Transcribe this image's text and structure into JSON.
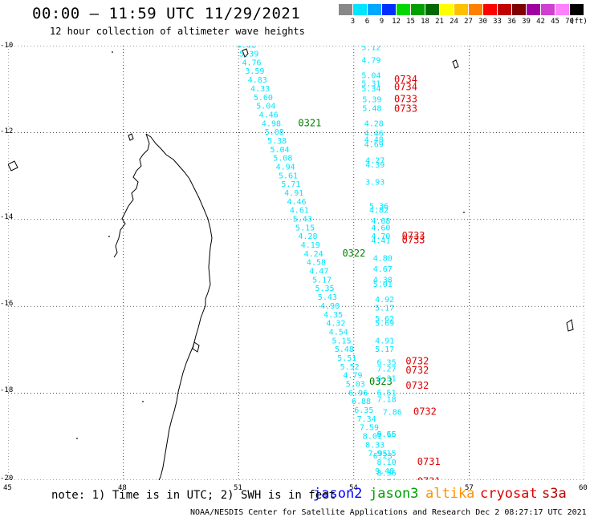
{
  "header": {
    "title": "00:00 – 11:59 UTC 11/29/2021",
    "subtitle": "12 hour collection of altimeter wave heights"
  },
  "legend": {
    "unit": "(ft)",
    "bins": [
      {
        "label": "3",
        "color": "#888888"
      },
      {
        "label": "6",
        "color": "#00e5ff"
      },
      {
        "label": "9",
        "color": "#00a8ff"
      },
      {
        "label": "12",
        "color": "#0030ff"
      },
      {
        "label": "15",
        "color": "#00d800"
      },
      {
        "label": "18",
        "color": "#00a000"
      },
      {
        "label": "21",
        "color": "#006a00"
      },
      {
        "label": "24",
        "color": "#ffff00"
      },
      {
        "label": "27",
        "color": "#ffc000"
      },
      {
        "label": "30",
        "color": "#ff8000"
      },
      {
        "label": "33",
        "color": "#ff0000"
      },
      {
        "label": "36",
        "color": "#c00000"
      },
      {
        "label": "39",
        "color": "#800000"
      },
      {
        "label": "42",
        "color": "#a000a0"
      },
      {
        "label": "45",
        "color": "#d040d0"
      },
      {
        "label": "70",
        "color": "#ff80ff"
      },
      {
        "label": "",
        "color": "#000000"
      }
    ]
  },
  "map": {
    "lon_range": [
      45,
      60
    ],
    "lat_range": [
      -20,
      -10
    ],
    "lon_ticks": [
      "45",
      "48",
      "51",
      "54",
      "57",
      "60"
    ],
    "lat_ticks": [
      "-10",
      "-12",
      "-14",
      "-16",
      "-18",
      "-20"
    ],
    "swh_color": "#00e5ff",
    "tracks": [
      {
        "satellite": "jason3",
        "time_color": "#008000",
        "points": [
          {
            "lat": -10.05,
            "lon": 50.95,
            "swh": "3.61"
          },
          {
            "lat": -10.25,
            "lon": 51.02,
            "swh": "5.39"
          },
          {
            "lat": -10.45,
            "lon": 51.09,
            "swh": "4.76"
          },
          {
            "lat": -10.65,
            "lon": 51.17,
            "swh": "3.59"
          },
          {
            "lat": -10.85,
            "lon": 51.24,
            "swh": "4.83"
          },
          {
            "lat": -11.05,
            "lon": 51.31,
            "swh": "4.33"
          },
          {
            "lat": -11.25,
            "lon": 51.39,
            "swh": "5.60"
          },
          {
            "lat": -11.45,
            "lon": 51.46,
            "swh": "5.04"
          },
          {
            "lat": -11.65,
            "lon": 51.53,
            "swh": "4.46"
          },
          {
            "lat": -11.85,
            "lon": 51.6,
            "swh": "4.98"
          },
          {
            "lat": -12.05,
            "lon": 51.68,
            "swh": "5.08"
          },
          {
            "lat": -12.25,
            "lon": 51.75,
            "swh": "5.38"
          },
          {
            "lat": -12.45,
            "lon": 51.82,
            "swh": "5.04"
          },
          {
            "lat": -12.65,
            "lon": 51.9,
            "swh": "5.08"
          },
          {
            "lat": -12.85,
            "lon": 51.97,
            "swh": "4.94"
          },
          {
            "lat": -13.05,
            "lon": 52.04,
            "swh": "5.61"
          },
          {
            "lat": -13.25,
            "lon": 52.11,
            "swh": "5.71"
          },
          {
            "lat": -13.45,
            "lon": 52.19,
            "swh": "4.91"
          },
          {
            "lat": -13.65,
            "lon": 52.26,
            "swh": "4.46"
          },
          {
            "lat": -13.85,
            "lon": 52.33,
            "swh": "4.61"
          },
          {
            "lat": -14.05,
            "lon": 52.41,
            "swh": "5.43"
          },
          {
            "lat": -14.25,
            "lon": 52.48,
            "swh": "5.15"
          },
          {
            "lat": -14.45,
            "lon": 52.55,
            "swh": "4.28"
          },
          {
            "lat": -14.65,
            "lon": 52.62,
            "swh": "4.19"
          },
          {
            "lat": -14.85,
            "lon": 52.7,
            "swh": "4.24"
          },
          {
            "lat": -15.05,
            "lon": 52.77,
            "swh": "4.58"
          },
          {
            "lat": -15.25,
            "lon": 52.84,
            "swh": "4.47"
          },
          {
            "lat": -15.45,
            "lon": 52.92,
            "swh": "5.17"
          },
          {
            "lat": -15.65,
            "lon": 52.99,
            "swh": "5.35"
          },
          {
            "lat": -15.85,
            "lon": 53.06,
            "swh": "5.43"
          },
          {
            "lat": -16.05,
            "lon": 53.13,
            "swh": "4.90"
          },
          {
            "lat": -16.25,
            "lon": 53.21,
            "swh": "4.35"
          },
          {
            "lat": -16.45,
            "lon": 53.28,
            "swh": "4.32"
          },
          {
            "lat": -16.65,
            "lon": 53.35,
            "swh": "4.54"
          },
          {
            "lat": -16.85,
            "lon": 53.43,
            "swh": "5.15"
          },
          {
            "lat": -17.05,
            "lon": 53.5,
            "swh": "5.48"
          },
          {
            "lat": -17.25,
            "lon": 53.57,
            "swh": "5.51"
          },
          {
            "lat": -17.45,
            "lon": 53.64,
            "swh": "5.52"
          },
          {
            "lat": -17.65,
            "lon": 53.72,
            "swh": "4.79"
          },
          {
            "lat": -17.85,
            "lon": 53.79,
            "swh": "5.03"
          },
          {
            "lat": -18.05,
            "lon": 53.86,
            "swh": "6.96"
          },
          {
            "lat": -18.25,
            "lon": 53.94,
            "swh": "6.88"
          },
          {
            "lat": -18.45,
            "lon": 54.01,
            "swh": "6.35"
          },
          {
            "lat": -18.65,
            "lon": 54.08,
            "swh": "7.34"
          },
          {
            "lat": -18.85,
            "lon": 54.15,
            "swh": "7.59"
          },
          {
            "lat": -19.05,
            "lon": 54.23,
            "swh": "8.01"
          },
          {
            "lat": -19.25,
            "lon": 54.3,
            "swh": "8.33"
          },
          {
            "lat": -19.45,
            "lon": 54.37,
            "swh": "7.95"
          }
        ],
        "times": [
          {
            "lat": -10.0,
            "lon": 51.65,
            "label": "0320"
          },
          {
            "lat": -11.85,
            "lon": 52.55,
            "label": "0321"
          },
          {
            "lat": -14.85,
            "lon": 53.7,
            "label": "0322"
          },
          {
            "lat": -17.8,
            "lon": 54.4,
            "label": "0323"
          }
        ]
      },
      {
        "satellite": "cryosat",
        "time_color": "#e00000",
        "points": [
          {
            "lat": -10.1,
            "lon": 54.2,
            "swh": "5.12"
          },
          {
            "lat": -10.4,
            "lon": 54.2,
            "swh": "4.79"
          },
          {
            "lat": -10.75,
            "lon": 54.2,
            "swh": "5.04"
          },
          {
            "lat": -10.93,
            "lon": 54.2,
            "swh": "5.31"
          },
          {
            "lat": -11.05,
            "lon": 54.2,
            "swh": "5.34"
          },
          {
            "lat": -11.3,
            "lon": 54.22,
            "swh": "5.39"
          },
          {
            "lat": -11.5,
            "lon": 54.22,
            "swh": "5.48"
          },
          {
            "lat": -11.85,
            "lon": 54.27,
            "swh": "4.28"
          },
          {
            "lat": -12.08,
            "lon": 54.27,
            "swh": "4.46"
          },
          {
            "lat": -12.22,
            "lon": 54.27,
            "swh": "4.48"
          },
          {
            "lat": -12.33,
            "lon": 54.27,
            "swh": "4.69"
          },
          {
            "lat": -12.7,
            "lon": 54.3,
            "swh": "4.27"
          },
          {
            "lat": -12.8,
            "lon": 54.3,
            "swh": "4.39"
          },
          {
            "lat": -13.2,
            "lon": 54.3,
            "swh": "3.93"
          },
          {
            "lat": -13.75,
            "lon": 54.4,
            "swh": "5.36"
          },
          {
            "lat": -13.85,
            "lon": 54.4,
            "swh": "4.82"
          },
          {
            "lat": -14.1,
            "lon": 54.45,
            "swh": "4.68"
          },
          {
            "lat": -14.25,
            "lon": 54.45,
            "swh": "4.60"
          },
          {
            "lat": -14.45,
            "lon": 54.45,
            "swh": "4.70"
          },
          {
            "lat": -14.55,
            "lon": 54.45,
            "swh": "4.41"
          },
          {
            "lat": -14.95,
            "lon": 54.5,
            "swh": "4.80"
          },
          {
            "lat": -15.2,
            "lon": 54.5,
            "swh": "4.67"
          },
          {
            "lat": -15.45,
            "lon": 54.5,
            "swh": "4.38"
          },
          {
            "lat": -15.55,
            "lon": 54.5,
            "swh": "5.01"
          },
          {
            "lat": -15.9,
            "lon": 54.55,
            "swh": "4.92"
          },
          {
            "lat": -16.1,
            "lon": 54.55,
            "swh": "5.17"
          },
          {
            "lat": -16.35,
            "lon": 54.55,
            "swh": "5.62"
          },
          {
            "lat": -16.45,
            "lon": 54.55,
            "swh": "5.69"
          },
          {
            "lat": -16.85,
            "lon": 54.55,
            "swh": "4.91"
          },
          {
            "lat": -17.05,
            "lon": 54.55,
            "swh": "5.17"
          },
          {
            "lat": -17.35,
            "lon": 54.6,
            "swh": "6.35"
          },
          {
            "lat": -17.5,
            "lon": 54.6,
            "swh": "7.27"
          },
          {
            "lat": -17.72,
            "lon": 54.6,
            "swh": "6.31"
          },
          {
            "lat": -18.05,
            "lon": 54.6,
            "swh": "6.51"
          },
          {
            "lat": -18.2,
            "lon": 54.6,
            "swh": "7.18"
          },
          {
            "lat": -18.5,
            "lon": 54.75,
            "swh": "7.86"
          },
          {
            "lat": -19.0,
            "lon": 54.6,
            "swh": "6.65"
          },
          {
            "lat": -19.5,
            "lon": 54.5,
            "swh": "6.23"
          },
          {
            "lat": -19.65,
            "lon": 54.6,
            "swh": "8.10"
          },
          {
            "lat": -19.9,
            "lon": 54.6,
            "swh": "8.36"
          },
          {
            "lat": -20.1,
            "lon": 54.6,
            "swh": "8.64"
          },
          {
            "lat": -20.12,
            "lon": 54.85,
            "swh": "8.34"
          }
        ],
        "times": [
          {
            "lat": -10.85,
            "lon": 55.05,
            "label": "0734"
          },
          {
            "lat": -11.02,
            "lon": 55.05,
            "label": "0734"
          },
          {
            "lat": -11.3,
            "lon": 55.05,
            "label": "0733"
          },
          {
            "lat": -11.52,
            "lon": 55.05,
            "label": "0733"
          },
          {
            "lat": -14.45,
            "lon": 55.25,
            "label": "0733"
          },
          {
            "lat": -14.55,
            "lon": 55.25,
            "label": "0733"
          },
          {
            "lat": -17.33,
            "lon": 55.35,
            "label": "0732"
          },
          {
            "lat": -17.55,
            "lon": 55.35,
            "label": "0732"
          },
          {
            "lat": -17.9,
            "lon": 55.35,
            "label": "0732"
          },
          {
            "lat": -18.5,
            "lon": 55.55,
            "label": "0732"
          },
          {
            "lat": -19.65,
            "lon": 55.65,
            "label": "0731"
          },
          {
            "lat": -20.1,
            "lon": 55.65,
            "label": "0731"
          }
        ]
      },
      {
        "satellite": "jason2",
        "time_color": "#0000ff",
        "points": [
          {
            "lat": -19.0,
            "lon": 54.6,
            "swh": "9.16"
          },
          {
            "lat": -19.45,
            "lon": 54.6,
            "swh": "9.15"
          },
          {
            "lat": -19.85,
            "lon": 54.55,
            "swh": "9.48"
          }
        ],
        "times": []
      }
    ]
  },
  "footer": {
    "note": "note: 1) Time is in UTC; 2) SWH is in feet",
    "satellites": [
      {
        "name": "jason2",
        "color": "#0000ff"
      },
      {
        "name": "jason3",
        "color": "#00a000"
      },
      {
        "name": "altika",
        "color": "#ff9000"
      },
      {
        "name": "cryosat",
        "color": "#e00000"
      },
      {
        "name": "s3a",
        "color": "#c00000"
      }
    ],
    "credit": "NOAA/NESDIS Center for Satellite Applications and Research   Dec  2 08:27:17 UTC 2021"
  }
}
